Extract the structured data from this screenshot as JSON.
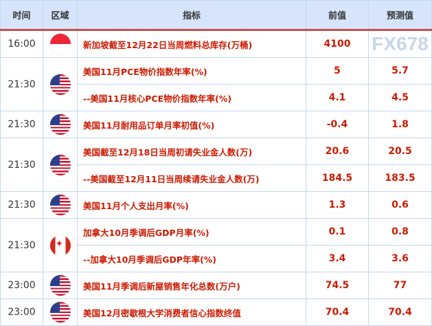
{
  "headers": {
    "time": "时间",
    "region": "区域",
    "indicator": "指标",
    "previous": "前值",
    "forecast": "预测值"
  },
  "groups": [
    {
      "time": "16:00",
      "flag": "singapore-flag",
      "rows": [
        {
          "indicator": "新加坡截至12月22日当周燃料总库存(万桶)",
          "previous": "4100",
          "forecast": ""
        }
      ]
    },
    {
      "time": "21:30",
      "flag": "us-flag",
      "rows": [
        {
          "indicator": "美国11月PCE物价指数年率(%)",
          "previous": "5",
          "forecast": "5.7"
        },
        {
          "indicator": "--美国11月核心PCE物价指数年率(%)",
          "previous": "4.1",
          "forecast": "4.5"
        }
      ]
    },
    {
      "time": "21:30",
      "flag": "us-flag",
      "rows": [
        {
          "indicator": "美国11月耐用品订单月率初值(%)",
          "previous": "-0.4",
          "forecast": "1.8"
        }
      ]
    },
    {
      "time": "21:30",
      "flag": "us-flag",
      "rows": [
        {
          "indicator": "美国截至12月18日当周初请失业金人数(万)",
          "previous": "20.6",
          "forecast": "20.5"
        },
        {
          "indicator": "--美国截至12月11日当周续请失业金人数(万)",
          "previous": "184.5",
          "forecast": "183.5"
        }
      ]
    },
    {
      "time": "21:30",
      "flag": "us-flag",
      "rows": [
        {
          "indicator": "美国11月个人支出月率(%)",
          "previous": "1.3",
          "forecast": "0.6"
        }
      ]
    },
    {
      "time": "21:30",
      "flag": "canada-flag",
      "rows": [
        {
          "indicator": "加拿大10月季调后GDP月率(%)",
          "previous": "0.1",
          "forecast": "0.8"
        },
        {
          "indicator": "--加拿大10月季调后GDP年率(%)",
          "previous": "3.4",
          "forecast": "3.6"
        }
      ]
    },
    {
      "time": "23:00",
      "flag": "us-flag",
      "rows": [
        {
          "indicator": "美国11月季调后新屋销售年化总数(万户)",
          "previous": "74.5",
          "forecast": "77"
        }
      ]
    },
    {
      "time": "23:00",
      "flag": "us-flag",
      "rows": [
        {
          "indicator": "美国12月密歇根大学消费者信心指数终值",
          "previous": "70.4",
          "forecast": "70.4"
        }
      ]
    }
  ],
  "watermark": "FX678"
}
